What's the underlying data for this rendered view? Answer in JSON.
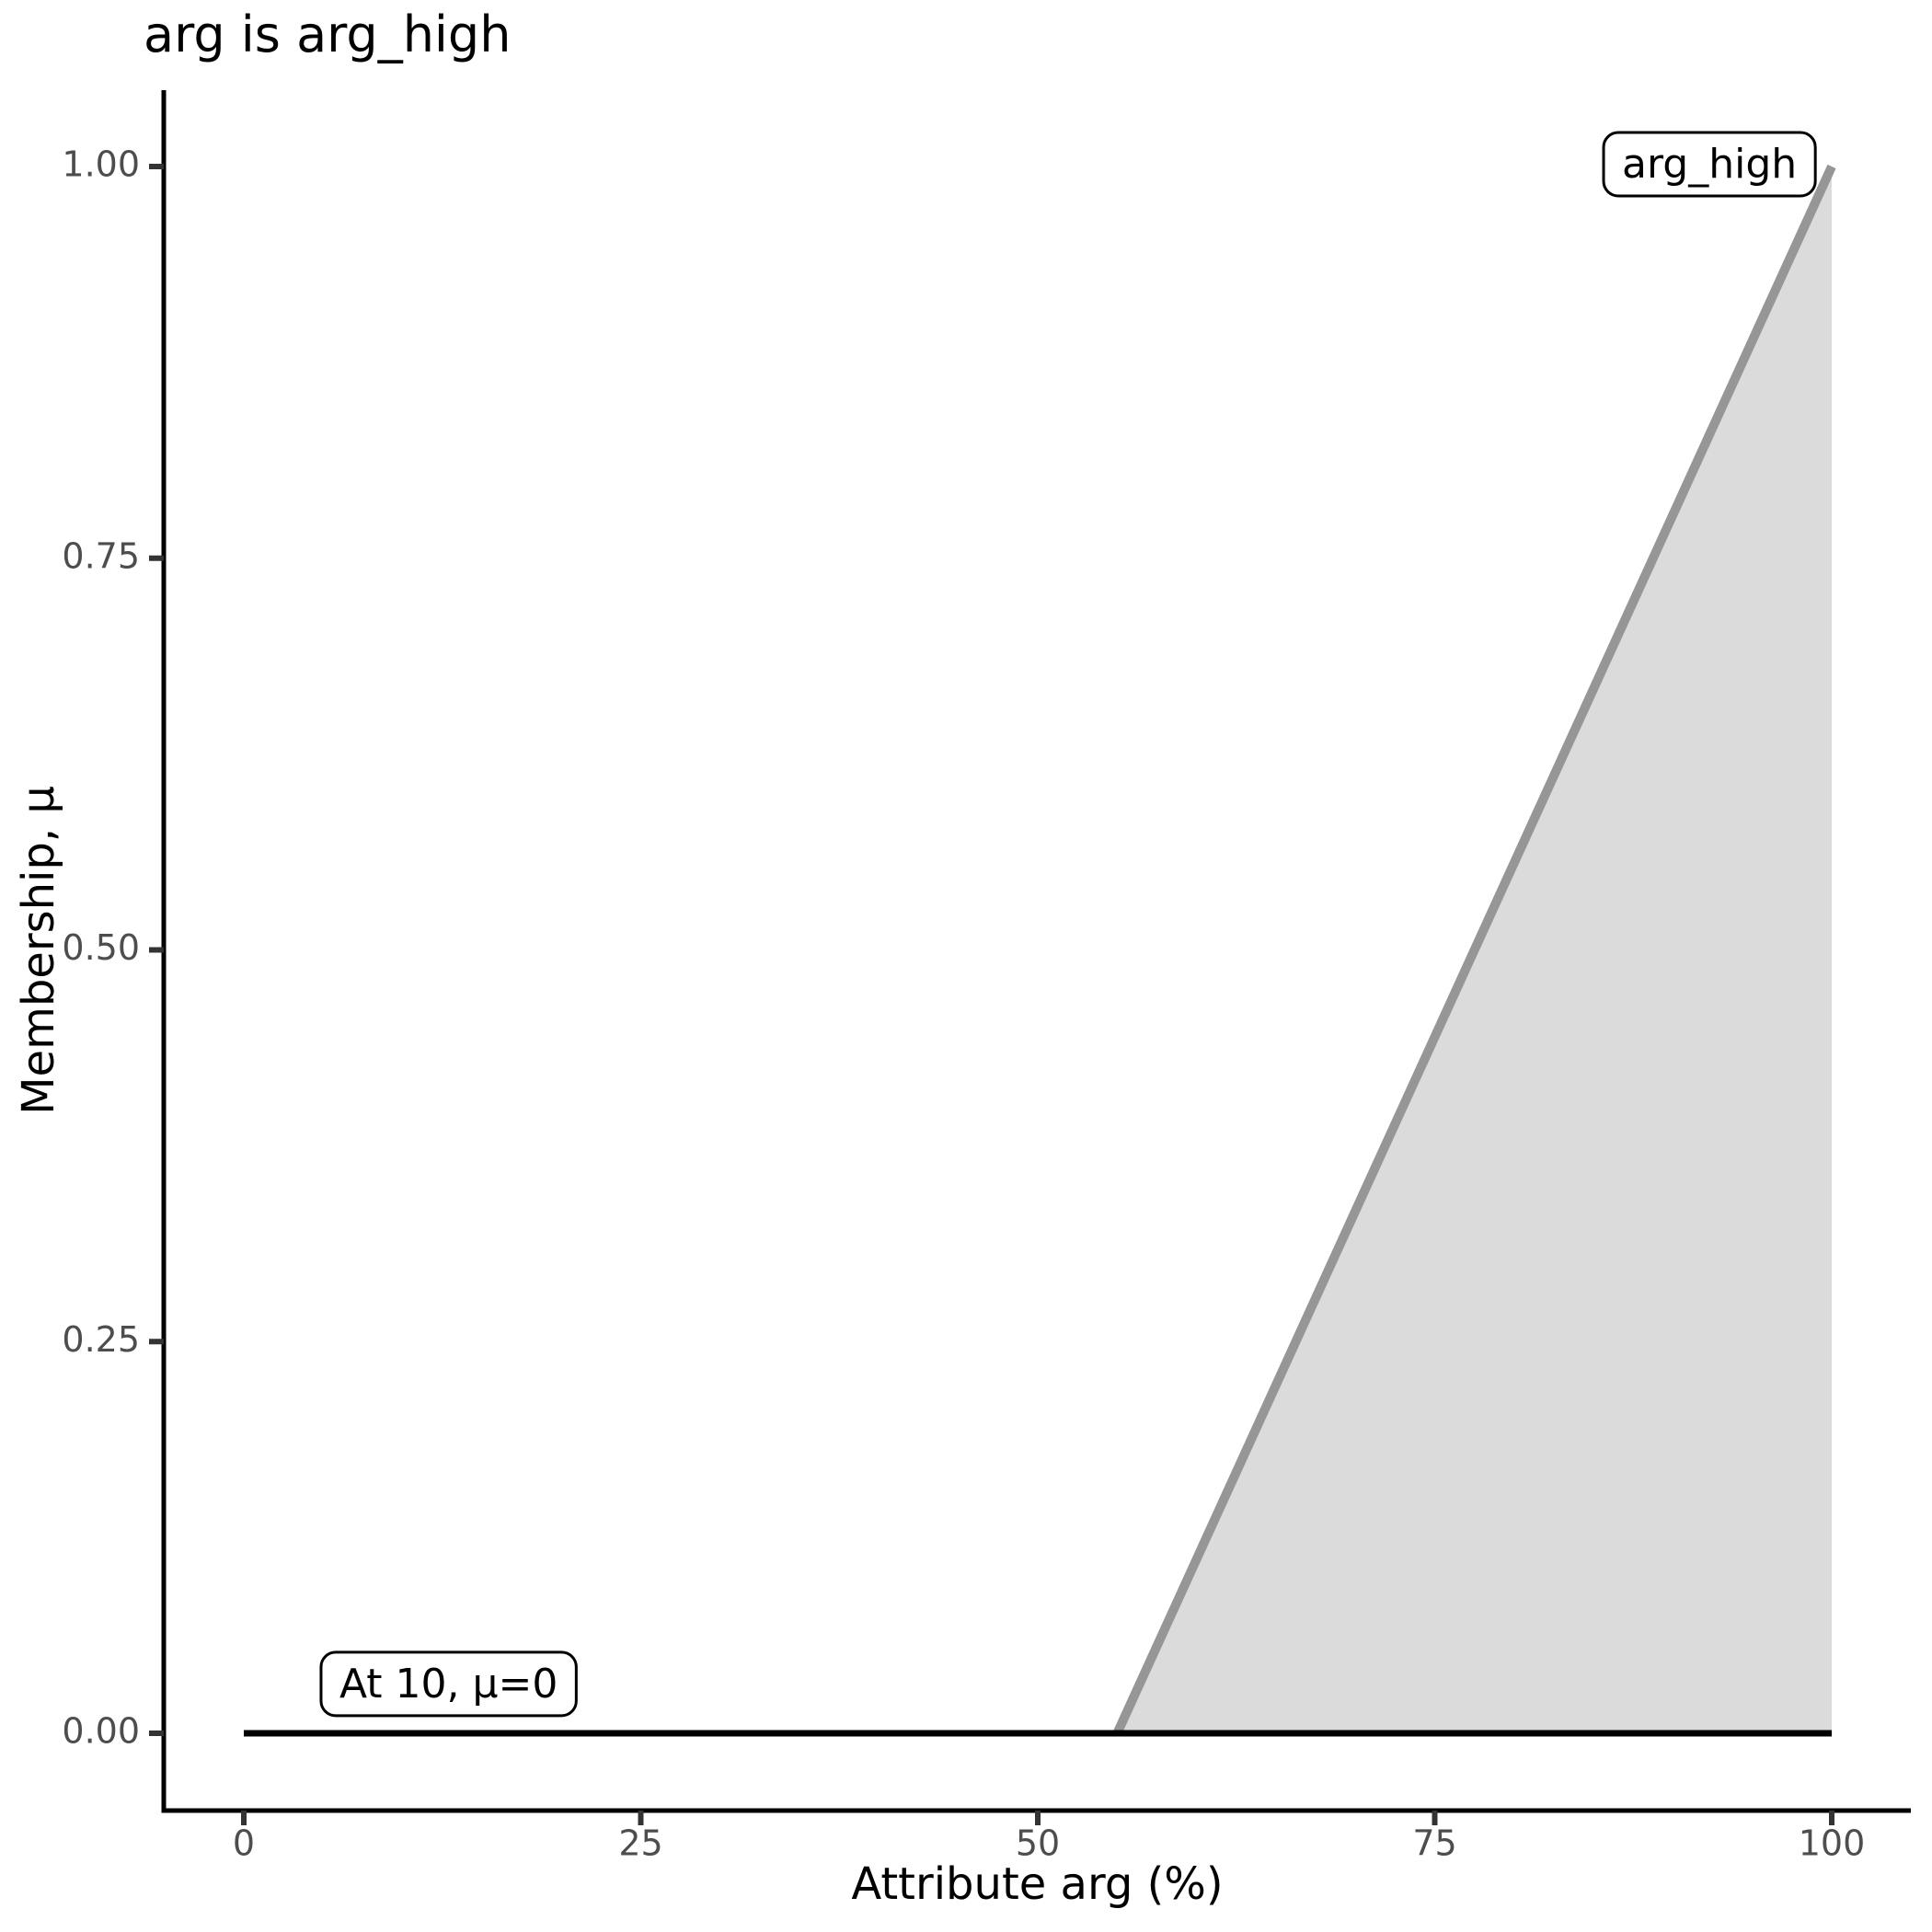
{
  "chart_data": {
    "type": "area",
    "title": "arg is arg_high",
    "xlabel": "Attribute arg (%)",
    "ylabel": "Membership, μ",
    "xlim": [
      0,
      100
    ],
    "ylim": [
      0,
      1
    ],
    "grid": false,
    "legend": "none",
    "x_ticks": {
      "values": [
        0,
        25,
        50,
        75,
        100
      ],
      "labels": [
        "0",
        "25",
        "50",
        "75",
        "100"
      ]
    },
    "y_ticks": {
      "values": [
        0,
        0.25,
        0.5,
        0.75,
        1
      ],
      "labels": [
        "0.00",
        "0.25",
        "0.50",
        "0.75",
        "1.00"
      ]
    },
    "area": {
      "name": "arg_high_membership_area",
      "fill": "#DBDBDB",
      "points": [
        [
          55,
          0
        ],
        [
          100,
          1
        ],
        [
          100,
          0
        ]
      ]
    },
    "series": [
      {
        "name": "arg_high_membership_ramp",
        "type": "line",
        "color": "#969696",
        "width": 10,
        "points": [
          [
            55,
            0
          ],
          [
            100,
            1
          ]
        ]
      },
      {
        "name": "evaluation_result_baseline",
        "type": "line",
        "color": "#000000",
        "width": 7,
        "points": [
          [
            0,
            0
          ],
          [
            100,
            0
          ]
        ]
      }
    ],
    "annotations": [
      {
        "label": "At 10, μ=0",
        "x": 12.9,
        "y": 0.03
      },
      {
        "label": "arg_high",
        "x": 92.3,
        "y": 1.0
      }
    ],
    "colors": {
      "axis_line": "#000000",
      "tick_mark": "#333333",
      "tick_label": "#4D4D4D",
      "annotation_border": "#000000",
      "annotation_background": "#FFFFFF",
      "panel_background": "#FFFFFF"
    }
  }
}
